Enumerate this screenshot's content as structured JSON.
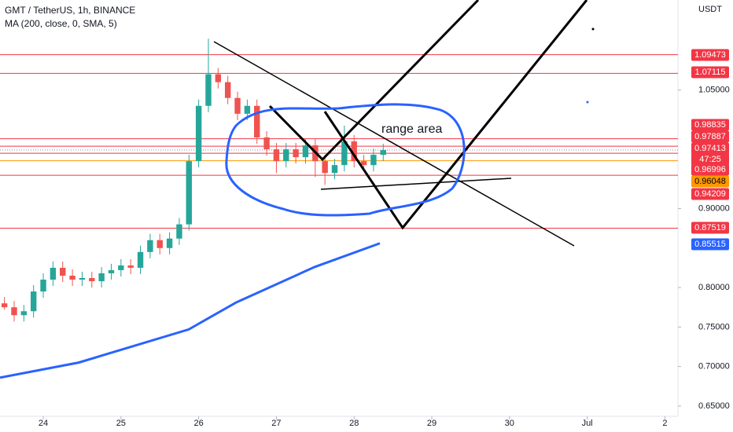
{
  "chart_data": {
    "type": "candlestick",
    "title": "GMT / TetherUS, 1h, BINANCE",
    "subtitle": "MA (200, close, 0, SMA, 5)",
    "y_axis_label": "USDT",
    "annotation": "range area",
    "countdown": "47:25",
    "up_color": "#26a69a",
    "down_color": "#ef5350",
    "x": [
      23.5,
      23.625,
      23.75,
      23.875,
      24,
      24.125,
      24.25,
      24.375,
      24.5,
      24.625,
      24.75,
      24.875,
      25,
      25.125,
      25.25,
      25.375,
      25.5,
      25.625,
      25.75,
      25.875,
      26,
      26.125,
      26.25,
      26.375,
      26.5,
      26.625,
      26.75,
      26.875,
      27,
      27.125,
      27.25,
      27.375,
      27.5,
      27.625,
      27.75,
      27.875,
      28,
      28.125,
      28.25,
      28.375
    ],
    "open": [
      0.78,
      0.775,
      0.765,
      0.77,
      0.795,
      0.81,
      0.825,
      0.815,
      0.81,
      0.812,
      0.808,
      0.818,
      0.822,
      0.828,
      0.825,
      0.845,
      0.86,
      0.85,
      0.862,
      0.88,
      0.96,
      1.03,
      1.07,
      1.06,
      1.04,
      1.02,
      1.03,
      0.99,
      0.975,
      0.96,
      0.975,
      0.965,
      0.98,
      0.96,
      0.945,
      0.955,
      0.985,
      0.96,
      0.955,
      0.968
    ],
    "high": [
      0.788,
      0.783,
      0.778,
      0.803,
      0.818,
      0.833,
      0.833,
      0.823,
      0.82,
      0.82,
      0.826,
      0.83,
      0.836,
      0.836,
      0.853,
      0.868,
      0.868,
      0.87,
      0.888,
      0.968,
      1.038,
      1.115,
      1.078,
      1.068,
      1.048,
      1.038,
      1.038,
      0.998,
      0.983,
      0.983,
      0.983,
      0.988,
      0.988,
      0.968,
      0.963,
      1.005,
      0.993,
      0.968,
      0.976,
      0.982
    ],
    "low": [
      0.772,
      0.757,
      0.757,
      0.762,
      0.787,
      0.802,
      0.807,
      0.802,
      0.802,
      0.8,
      0.8,
      0.81,
      0.814,
      0.817,
      0.817,
      0.837,
      0.842,
      0.842,
      0.854,
      0.872,
      0.952,
      1.022,
      1.052,
      1.032,
      1.012,
      1.012,
      0.982,
      0.967,
      0.945,
      0.952,
      0.957,
      0.957,
      0.94,
      0.93,
      0.937,
      0.947,
      0.952,
      0.947,
      0.947,
      0.96
    ],
    "close": [
      0.775,
      0.765,
      0.77,
      0.795,
      0.81,
      0.825,
      0.815,
      0.81,
      0.812,
      0.808,
      0.818,
      0.822,
      0.828,
      0.825,
      0.845,
      0.86,
      0.85,
      0.862,
      0.88,
      0.96,
      1.03,
      1.07,
      1.06,
      1.04,
      1.02,
      1.03,
      0.99,
      0.975,
      0.96,
      0.975,
      0.965,
      0.98,
      0.96,
      0.945,
      0.955,
      0.985,
      0.96,
      0.955,
      0.968,
      0.974
    ],
    "ma": {
      "color": "#2962ff",
      "x": [
        23.443,
        24.455,
        25.872,
        26.48,
        27.492,
        28.332
      ],
      "values": [
        0.686,
        0.705,
        0.747,
        0.781,
        0.826,
        0.856
      ]
    },
    "levels": [
      {
        "value": 1.09473,
        "label": "1.09473",
        "color": "#f23645"
      },
      {
        "value": 1.07115,
        "label": "1.07115",
        "color": "#f23645"
      },
      {
        "value": 0.98835,
        "label": "0.98835",
        "color": "#f23645"
      },
      {
        "value": 0.97887,
        "label": "0.97887",
        "color": "#f23645"
      },
      {
        "value": 0.97413,
        "label": "0.97413",
        "color": "#f23645",
        "dashed": true
      },
      {
        "value": 0.96996,
        "label": "0.96996",
        "color": "#f23645"
      },
      {
        "value": 0.96048,
        "label": "0.96048",
        "color": "#ff9800"
      },
      {
        "value": 0.94209,
        "label": "0.94209",
        "color": "#f23645"
      },
      {
        "value": 0.87519,
        "label": "0.87519",
        "color": "#f23645"
      },
      {
        "value": 0.85515,
        "label": "0.85515",
        "color": "#2962ff",
        "line": false
      }
    ],
    "xlim": [
      23.443,
      32.168
    ],
    "xticks": [
      24,
      25,
      26,
      27,
      28,
      29,
      30,
      {
        "value": 31,
        "label": "Jul"
      },
      {
        "value": 32,
        "label": "2"
      }
    ],
    "ylim": [
      0.637,
      1.164
    ],
    "yticks": [
      {
        "value": 1.05,
        "label": "1.05000"
      },
      {
        "value": 0.9,
        "label": "0.90000"
      },
      {
        "value": 0.8,
        "label": "0.80000"
      },
      {
        "value": 0.75,
        "label": "0.75000"
      },
      {
        "value": 0.7,
        "label": "0.70000"
      },
      {
        "value": 0.65,
        "label": "0.65000"
      }
    ]
  }
}
